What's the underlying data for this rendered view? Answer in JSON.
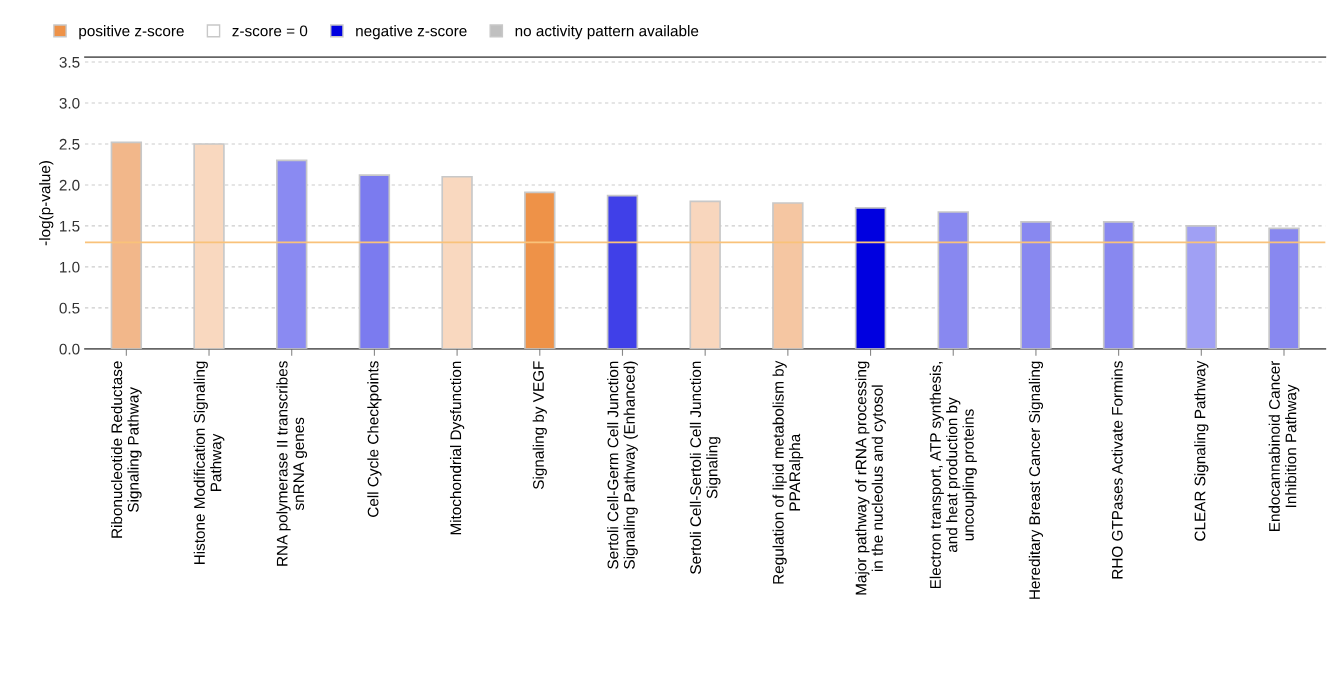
{
  "chart_data": {
    "type": "bar",
    "ylabel": "-log(p-value)",
    "categories": [
      "Ribonucleotide Reductase\nSignaling Pathway",
      "Histone Modification Signaling\nPathway",
      "RNA polymerase II transcribes\nsnRNA genes",
      "Cell Cycle Checkpoints",
      "Mitochondrial Dysfunction",
      "Signaling by VEGF",
      "Sertoli Cell-Germ Cell Junction\nSignaling Pathway (Enhanced)",
      "Sertoli Cell-Sertoli Cell Junction\nSignaling",
      "Regulation of lipid metabolism by\nPPARalpha",
      "Major pathway of rRNA processing\nin the nucleolus and cytosol",
      "Electron transport, ATP synthesis,\nand heat production by\nuncoupling proteins",
      "Hereditary Breast Cancer Signaling",
      "RHO GTPases Activate Formins",
      "CLEAR Signaling Pathway",
      "Endocannabinoid Cancer\nInhibition Pathway"
    ],
    "series": [
      {
        "name": "positive z-score",
        "color": "#ee9248",
        "values": [
          2.52,
          2.5,
          null,
          null,
          2.1,
          1.91,
          null,
          1.8,
          1.78,
          null,
          null,
          null,
          null,
          null,
          null
        ],
        "colors": [
          "#f2b78a",
          "#f9d8bf",
          null,
          null,
          "#f9d8bf",
          "#ee9248",
          null,
          "#f8d6bd",
          "#f5c6a2",
          null,
          null,
          null,
          null,
          null,
          null
        ]
      },
      {
        "name": "z-score = 0",
        "color": "#ffffff",
        "values": [
          null,
          null,
          null,
          null,
          null,
          null,
          null,
          null,
          null,
          null,
          null,
          null,
          null,
          null,
          null
        ]
      },
      {
        "name": "negative z-score",
        "color": "#0000e0",
        "values": [
          null,
          null,
          2.3,
          2.12,
          null,
          null,
          1.87,
          null,
          null,
          1.72,
          1.67,
          1.55,
          1.55,
          1.5,
          1.47
        ],
        "colors": [
          null,
          null,
          "#8a8af2",
          "#7b7bef",
          null,
          null,
          "#4040e8",
          null,
          null,
          "#0000e0",
          "#8888f0",
          "#8888f0",
          "#8888f0",
          "#a0a0f4",
          "#8888f0"
        ]
      },
      {
        "name": "no activity pattern available",
        "color": "#c0c0c0",
        "values": [
          null,
          null,
          null,
          null,
          null,
          null,
          null,
          null,
          null,
          null,
          null,
          null,
          null,
          null,
          null
        ]
      }
    ],
    "ylim": [
      0,
      3.56
    ],
    "yticks": [
      {
        "value": 0,
        "label": "0.0"
      },
      {
        "value": 0.5,
        "label": "0.5"
      },
      {
        "value": 1,
        "label": "1.0"
      },
      {
        "value": 1.5,
        "label": "1.5"
      },
      {
        "value": 2,
        "label": "2.0"
      },
      {
        "value": 2.5,
        "label": "2.5"
      },
      {
        "value": 3,
        "label": "3.0"
      },
      {
        "value": 3.5,
        "label": "3.5"
      }
    ],
    "ref_lines": [
      {
        "axis": "y",
        "value": 1.3,
        "color": "#f9c27a"
      }
    ],
    "grid": "y",
    "legend": "top left"
  }
}
